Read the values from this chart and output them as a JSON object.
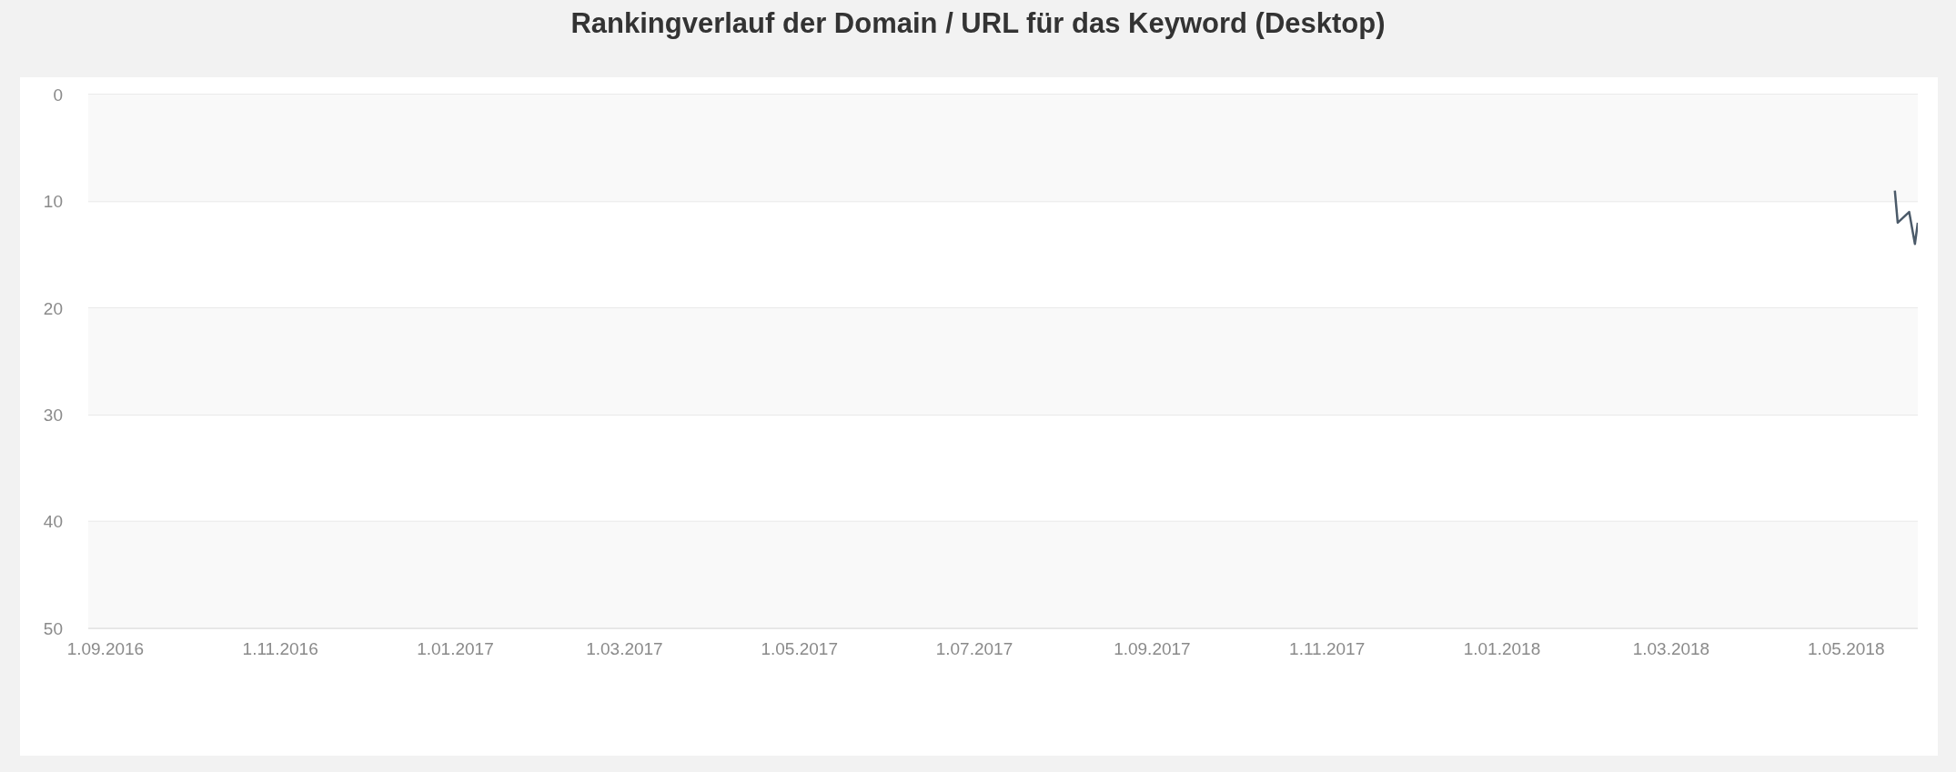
{
  "chart_data": {
    "type": "line",
    "title": "Rankingverlauf der Domain / URL für das Keyword (Desktop)",
    "x": [
      "2018-05-18",
      "2018-05-19",
      "2018-05-23",
      "2018-05-25",
      "2018-05-26"
    ],
    "series": [
      {
        "color": "#4b5a69",
        "values": [
          9,
          12,
          11,
          14,
          12
        ]
      }
    ],
    "xlim": [
      "2016-08-26",
      "2018-05-26"
    ],
    "xticks": [
      {
        "value": "2016-09-01",
        "label": "1.09.2016"
      },
      {
        "value": "2016-11-01",
        "label": "1.11.2016"
      },
      {
        "value": "2017-01-01",
        "label": "1.01.2017"
      },
      {
        "value": "2017-03-01",
        "label": "1.03.2017"
      },
      {
        "value": "2017-05-01",
        "label": "1.05.2017"
      },
      {
        "value": "2017-07-01",
        "label": "1.07.2017"
      },
      {
        "value": "2017-09-01",
        "label": "1.09.2017"
      },
      {
        "value": "2017-11-01",
        "label": "1.11.2017"
      },
      {
        "value": "2018-01-01",
        "label": "1.01.2018"
      },
      {
        "value": "2018-03-01",
        "label": "1.03.2018"
      },
      {
        "value": "2018-05-01",
        "label": "1.05.2018"
      }
    ],
    "ylim": [
      50,
      0
    ],
    "yticks": [
      0,
      10,
      20,
      30,
      40,
      50
    ],
    "bands": [
      {
        "axis": "y",
        "from": 0,
        "to": 10,
        "color": "#f9f9f9"
      },
      {
        "axis": "y",
        "from": 20,
        "to": 30,
        "color": "#f9f9f9"
      },
      {
        "axis": "y",
        "from": 40,
        "to": 50,
        "color": "#f9f9f9"
      }
    ],
    "grid": "y",
    "marker": "none"
  }
}
